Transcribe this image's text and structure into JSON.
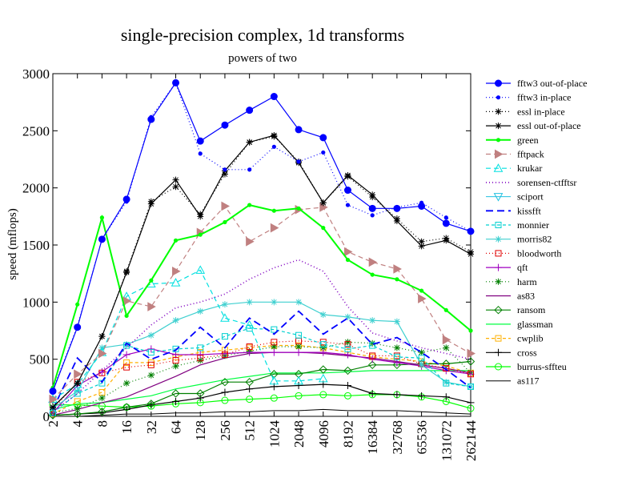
{
  "chart_data": {
    "type": "line",
    "title": "single-precision complex, 1d transforms",
    "subtitle": "powers of two",
    "xlabel": "",
    "ylabel": "speed (mflops)",
    "ylim": [
      0,
      3000
    ],
    "yticks": [
      0,
      500,
      1000,
      1500,
      2000,
      2500,
      3000
    ],
    "categories": [
      "2",
      "4",
      "8",
      "16",
      "32",
      "64",
      "128",
      "256",
      "512",
      "1024",
      "2048",
      "4096",
      "8192",
      "16384",
      "32768",
      "65536",
      "131072",
      "262144"
    ],
    "series": [
      {
        "name": "fftw3 out-of-place",
        "color": "#0000ff",
        "dash": "",
        "width": 1.2,
        "marker": "circle-filled",
        "values": [
          220,
          780,
          1550,
          1900,
          2600,
          2920,
          2410,
          2550,
          2680,
          2800,
          2510,
          2440,
          1980,
          1820,
          1820,
          1840,
          1690,
          1620
        ]
      },
      {
        "name": "fftw3 in-place",
        "color": "#0000ff",
        "dash": "1,3",
        "width": 1.2,
        "marker": "dot",
        "values": [
          230,
          790,
          1550,
          1880,
          2620,
          2920,
          2300,
          2160,
          2160,
          2360,
          2230,
          2310,
          1850,
          1760,
          1830,
          1870,
          1740,
          1620
        ]
      },
      {
        "name": "essl in-place",
        "color": "#000000",
        "dash": "1,3",
        "width": 1.2,
        "marker": "star",
        "values": [
          80,
          290,
          700,
          1270,
          1880,
          2010,
          1770,
          2120,
          2400,
          2450,
          2230,
          1870,
          2100,
          1920,
          1730,
          1530,
          1560,
          1440
        ]
      },
      {
        "name": "essl out-of-place",
        "color": "#000000",
        "dash": "",
        "width": 1.2,
        "marker": "star",
        "values": [
          80,
          290,
          700,
          1260,
          1860,
          2070,
          1750,
          2150,
          2400,
          2460,
          2220,
          1870,
          2110,
          1940,
          1710,
          1490,
          1540,
          1420
        ]
      },
      {
        "name": "green",
        "color": "#00ff00",
        "dash": "",
        "width": 2,
        "marker": "dot",
        "values": [
          250,
          980,
          1740,
          880,
          1190,
          1540,
          1590,
          1700,
          1850,
          1800,
          1820,
          1650,
          1370,
          1240,
          1200,
          1100,
          930,
          750
        ]
      },
      {
        "name": "fftpack",
        "color": "#c08080",
        "dash": "6,4",
        "width": 1.2,
        "marker": "tri-right",
        "values": [
          150,
          370,
          550,
          1010,
          960,
          1270,
          1610,
          1840,
          1530,
          1650,
          1810,
          1830,
          1440,
          1350,
          1290,
          1030,
          670,
          550
        ]
      },
      {
        "name": "krukar",
        "color": "#00e0e0",
        "dash": "6,4",
        "width": 1.2,
        "marker": "tri-up",
        "values": [
          150,
          280,
          560,
          1050,
          1160,
          1170,
          1280,
          860,
          800,
          310,
          310,
          330,
          null,
          null,
          null,
          null,
          null,
          null
        ]
      },
      {
        "name": "sorensen-ctfftsr",
        "color": "#8000c0",
        "dash": "1,3",
        "width": 1.6,
        "marker": "",
        "values": [
          40,
          200,
          400,
          600,
          800,
          950,
          1000,
          1070,
          1200,
          1300,
          1370,
          1270,
          960,
          730,
          660,
          600,
          550,
          500
        ]
      },
      {
        "name": "sciport",
        "color": "#20c0e0",
        "dash": "",
        "width": 1,
        "marker": "tri-down",
        "values": [
          null,
          null,
          null,
          null,
          null,
          null,
          null,
          null,
          null,
          null,
          null,
          null,
          null,
          null,
          null,
          null,
          null,
          null
        ]
      },
      {
        "name": "kissfft",
        "color": "#0000ff",
        "dash": "9,5",
        "width": 1.8,
        "marker": "",
        "values": [
          60,
          510,
          300,
          640,
          500,
          580,
          780,
          600,
          860,
          720,
          920,
          720,
          860,
          630,
          690,
          560,
          410,
          250
        ]
      },
      {
        "name": "monnier",
        "color": "#00d0d0",
        "dash": "4,3",
        "width": 1.2,
        "marker": "square-open",
        "values": [
          30,
          200,
          290,
          620,
          560,
          590,
          600,
          700,
          770,
          760,
          710,
          630,
          590,
          620,
          520,
          510,
          290,
          260
        ]
      },
      {
        "name": "morris82",
        "color": "#40d0d0",
        "dash": "",
        "width": 1.2,
        "marker": "star",
        "values": [
          70,
          220,
          600,
          630,
          710,
          840,
          920,
          980,
          1000,
          1000,
          1000,
          890,
          870,
          840,
          830,
          450,
          300,
          260
        ]
      },
      {
        "name": "bloodworth",
        "color": "#e00000",
        "dash": "1,3",
        "width": 1.2,
        "marker": "square-open",
        "values": [
          60,
          300,
          380,
          430,
          450,
          490,
          510,
          540,
          610,
          650,
          660,
          650,
          630,
          530,
          530,
          460,
          420,
          370
        ]
      },
      {
        "name": "qft",
        "color": "#a000c0",
        "dash": "",
        "width": 1.2,
        "marker": "plus",
        "values": [
          30,
          270,
          390,
          540,
          590,
          540,
          540,
          550,
          560,
          560,
          560,
          560,
          540,
          500,
          470,
          440,
          400,
          370
        ]
      },
      {
        "name": "harm",
        "color": "#008000",
        "dash": "1,3",
        "width": 1.2,
        "marker": "star",
        "values": [
          30,
          70,
          160,
          290,
          360,
          440,
          490,
          530,
          570,
          610,
          610,
          600,
          650,
          640,
          600,
          560,
          600,
          380
        ]
      },
      {
        "name": "as83",
        "color": "#800080",
        "dash": "",
        "width": 1.2,
        "marker": "",
        "values": [
          10,
          60,
          120,
          170,
          260,
          350,
          450,
          510,
          550,
          560,
          560,
          550,
          530,
          510,
          480,
          450,
          420,
          380
        ]
      },
      {
        "name": "ransom",
        "color": "#008000",
        "dash": "",
        "width": 1.2,
        "marker": "diamond",
        "values": [
          10,
          20,
          40,
          80,
          110,
          200,
          200,
          300,
          300,
          370,
          370,
          410,
          400,
          450,
          450,
          460,
          460,
          480
        ]
      },
      {
        "name": "glassman",
        "color": "#00ff40",
        "dash": "",
        "width": 1.2,
        "marker": "",
        "values": [
          60,
          110,
          120,
          150,
          180,
          240,
          280,
          320,
          350,
          380,
          380,
          380,
          390,
          400,
          400,
          400,
          400,
          400
        ]
      },
      {
        "name": "cwplib",
        "color": "#ffb000",
        "dash": "4,3",
        "width": 1.2,
        "marker": "square-open",
        "values": [
          20,
          130,
          210,
          470,
          470,
          520,
          560,
          580,
          600,
          620,
          620,
          600,
          560,
          520,
          500,
          480,
          440,
          380
        ]
      },
      {
        "name": "cross",
        "color": "#000000",
        "dash": "",
        "width": 1.2,
        "marker": "plus",
        "values": [
          10,
          20,
          30,
          60,
          100,
          130,
          160,
          210,
          240,
          260,
          270,
          280,
          270,
          200,
          190,
          180,
          170,
          120
        ]
      },
      {
        "name": "burrus-sffteu",
        "color": "#00ff00",
        "dash": "",
        "width": 1.2,
        "marker": "circle-open",
        "values": [
          100,
          100,
          90,
          80,
          90,
          110,
          120,
          140,
          150,
          160,
          180,
          190,
          180,
          190,
          190,
          170,
          130,
          70
        ]
      },
      {
        "name": "as117",
        "color": "#000000",
        "dash": "",
        "width": 1,
        "marker": "",
        "values": [
          0,
          0,
          10,
          20,
          20,
          30,
          30,
          40,
          40,
          50,
          50,
          60,
          50,
          50,
          50,
          40,
          30,
          20
        ]
      }
    ]
  }
}
